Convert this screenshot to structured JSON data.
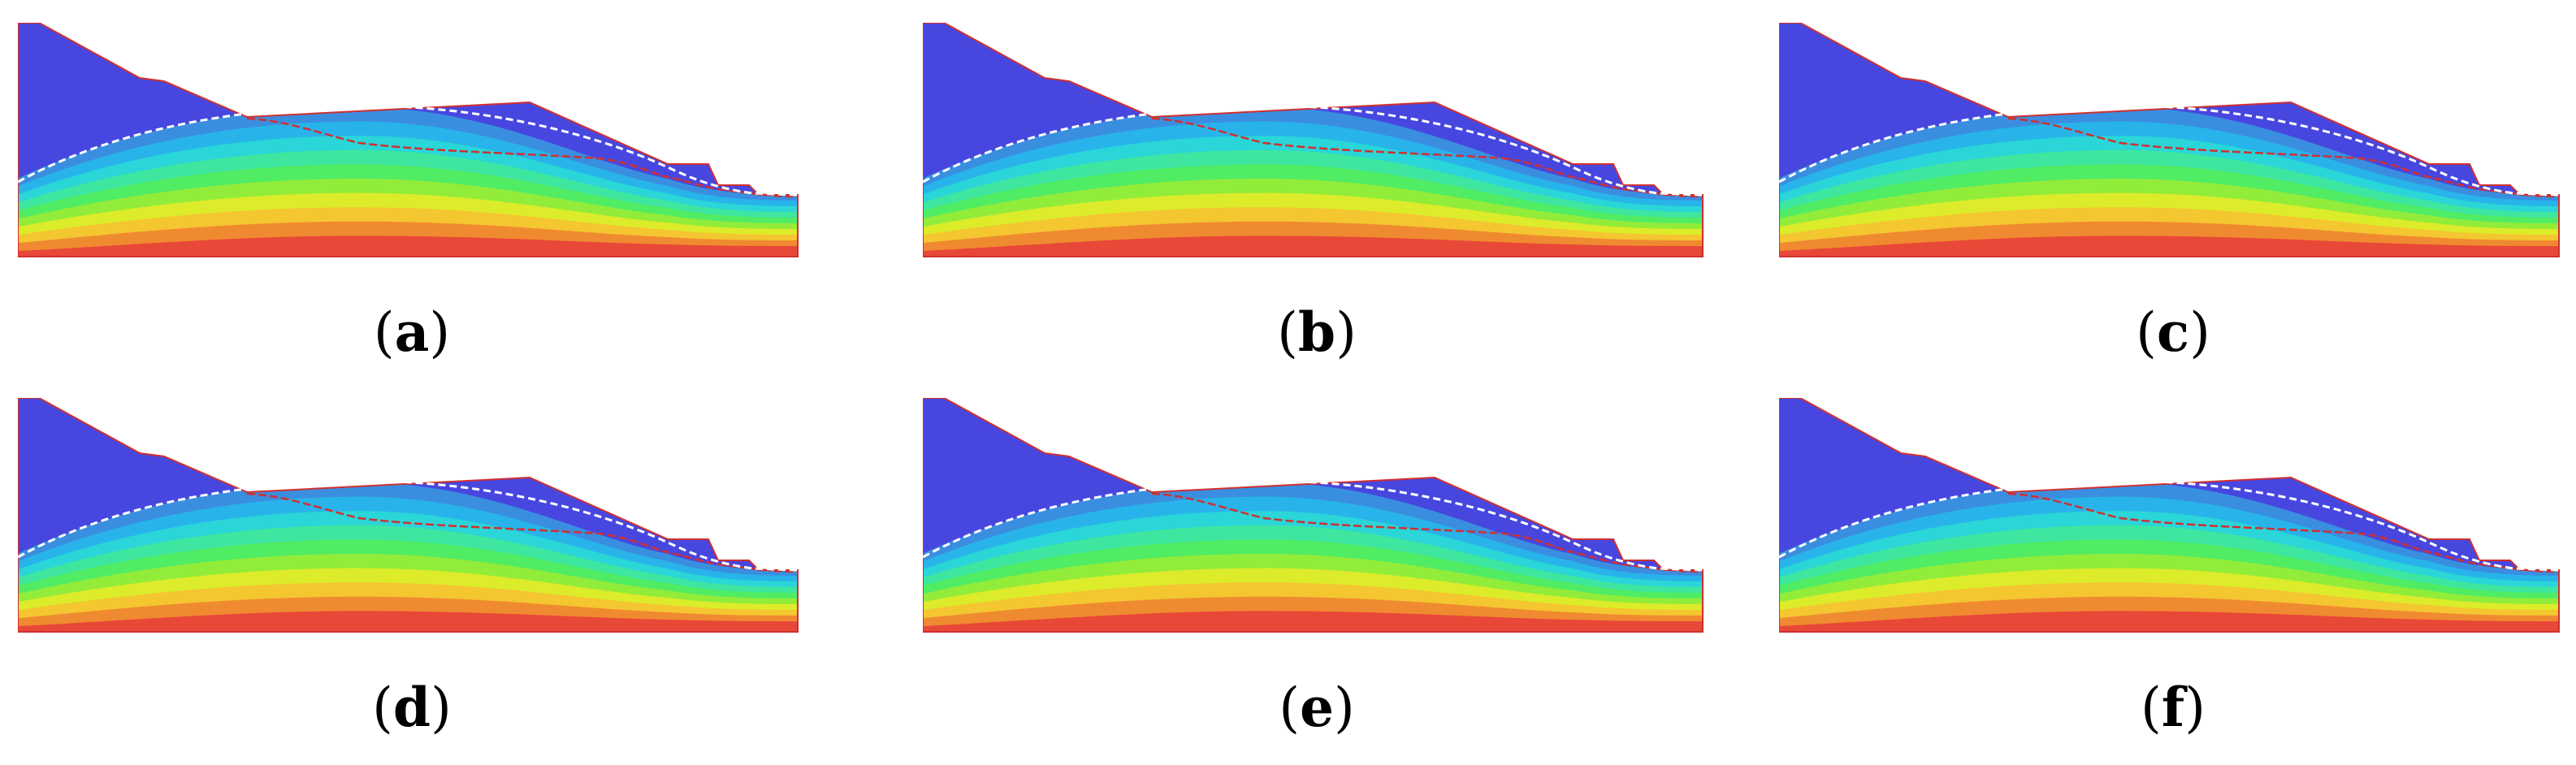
{
  "panels": [
    {
      "id": "a",
      "label_open": "(",
      "letter": "a",
      "label_close": ")"
    },
    {
      "id": "b",
      "label_open": "(",
      "letter": "b",
      "label_close": ")"
    },
    {
      "id": "c",
      "label_open": "(",
      "letter": "c",
      "label_close": ")"
    },
    {
      "id": "d",
      "label_open": "(",
      "letter": "d",
      "label_close": ")"
    },
    {
      "id": "e",
      "label_open": "(",
      "letter": "e",
      "label_close": ")"
    },
    {
      "id": "f",
      "label_open": "(",
      "letter": "f",
      "label_close": ")"
    }
  ],
  "colors": {
    "dry_zone": "#4747e0",
    "boundary": "#d03030",
    "phreatic_line": "#ffffff",
    "colormap": [
      "#3a8ee0",
      "#28b4ea",
      "#2ad6d8",
      "#3ee6a0",
      "#50ec64",
      "#92ec3a",
      "#dcec2a",
      "#f4c630",
      "#f08a30",
      "#e84838"
    ]
  }
}
